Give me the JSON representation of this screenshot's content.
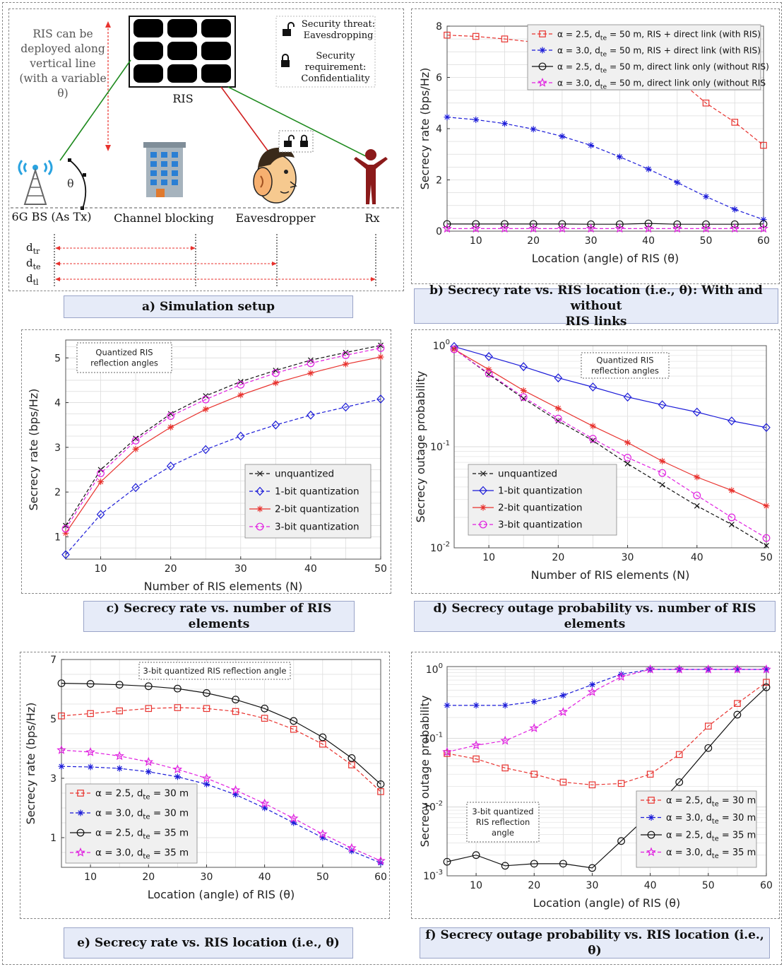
{
  "setup": {
    "ris_note": [
      "RIS can be",
      "deployed along",
      "vertical line",
      "(with a variable",
      "θ)"
    ],
    "ris_label": "RIS",
    "threat_label": [
      "Security threat:",
      "Eavesdropping"
    ],
    "requirement_label": [
      "Security",
      "requirement:",
      "Confidentiality"
    ],
    "bs_label": "6G BS (As Tx)",
    "blocking_label": "Channel blocking",
    "eve_label": "Eavesdropper",
    "rx_label": "Rx",
    "theta": "θ",
    "d_labels": [
      {
        "base": "d",
        "sub": "tr"
      },
      {
        "base": "d",
        "sub": "te"
      },
      {
        "base": "d",
        "sub": "tl"
      }
    ]
  },
  "captions": {
    "a": "a) Simulation setup",
    "b": [
      "b) Secrecy rate vs. RIS location (i.e., θ): With and without",
      "RIS links"
    ],
    "c": "c) Secrecy rate vs. number of RIS elements",
    "d": "d) Secrecy outage probability vs. number of RIS elements",
    "e": "e) Secrecy rate vs. RIS location (i.e., θ)",
    "f": "f) Secrecy outage probability vs. RIS location (i.e., θ)"
  },
  "colors": {
    "red": "#e8322e",
    "blue": "#1b1bd8",
    "black": "#111111",
    "magenta": "#e020e0",
    "green": "#1e8a1e",
    "caption_bg": "#e6ebf8"
  },
  "chart_data": [
    {
      "id": "b",
      "type": "line",
      "xlabel": "Location (angle) of RIS (θ)",
      "ylabel": "Secrecy rate (bps/Hz)",
      "xlim": [
        5,
        60
      ],
      "ylim": [
        0,
        8
      ],
      "scale": "linear",
      "xticks": [
        10,
        20,
        30,
        40,
        50,
        60
      ],
      "yticks": [
        0,
        2,
        4,
        6,
        8
      ],
      "xgrid": [
        5,
        10,
        15,
        20,
        25,
        30,
        35,
        40,
        45,
        50,
        55,
        60
      ],
      "ygrid": [
        0,
        0.5,
        1,
        1.5,
        2,
        2.5,
        3,
        3.5,
        4,
        4.5,
        5,
        5.5,
        6,
        6.5,
        7,
        7.5,
        8
      ],
      "legend": "top-right",
      "x": [
        5,
        10,
        15,
        20,
        25,
        30,
        35,
        40,
        45,
        50,
        55,
        60
      ],
      "series": [
        {
          "name": "α = 2.5, dte = 50 m, RIS + direct link (with RIS)",
          "legend": {
            "pre": "α = 2.5, d",
            "sub": "te",
            "post": " = 50 m, RIS + direct link (with RIS)"
          },
          "color": "red",
          "dash": true,
          "marker": "square",
          "values": [
            7.65,
            7.6,
            7.5,
            7.38,
            7.25,
            7.05,
            6.8,
            6.45,
            5.95,
            5.0,
            4.25,
            3.35
          ]
        },
        {
          "name": "α = 3.0, dte = 50 m, RIS + direct link (with RIS)",
          "legend": {
            "pre": "α = 3.0, d",
            "sub": "te",
            "post": " = 50 m, RIS + direct link (with RIS)"
          },
          "color": "blue",
          "dash": true,
          "marker": "asterisk",
          "values": [
            4.45,
            4.35,
            4.2,
            3.98,
            3.7,
            3.35,
            2.9,
            2.42,
            1.9,
            1.35,
            0.85,
            0.45
          ]
        },
        {
          "name": "α = 2.5, dte = 50 m, direct link only (without RIS)",
          "legend": {
            "pre": "α = 2.5, d",
            "sub": "te",
            "post": " = 50 m, direct link only (without RIS)"
          },
          "color": "black",
          "dash": false,
          "marker": "circle",
          "values": [
            0.28,
            0.28,
            0.28,
            0.28,
            0.28,
            0.27,
            0.27,
            0.3,
            0.27,
            0.27,
            0.27,
            0.28
          ]
        },
        {
          "name": "α = 3.0, dte = 50 m, direct link only (without RIS",
          "legend": {
            "pre": "α = 3.0, d",
            "sub": "te",
            "post": " = 50 m, direct link only (without RIS"
          },
          "color": "magenta",
          "dash": true,
          "marker": "star",
          "values": [
            0.1,
            0.1,
            0.1,
            0.1,
            0.1,
            0.1,
            0.1,
            0.1,
            0.1,
            0.1,
            0.1,
            0.1
          ]
        }
      ]
    },
    {
      "id": "c",
      "type": "line",
      "xlabel": "Number of RIS elements (N)",
      "ylabel": "Secrecy rate (bps/Hz)",
      "xlim": [
        5,
        50
      ],
      "ylim": [
        0.5,
        5.4
      ],
      "scale": "linear",
      "xticks": [
        10,
        20,
        30,
        40,
        50
      ],
      "yticks": [
        1,
        2,
        3,
        4,
        5
      ],
      "xgrid": [
        5,
        10,
        15,
        20,
        25,
        30,
        35,
        40,
        45,
        50
      ],
      "ygrid": [
        0.5,
        0.75,
        1,
        1.25,
        1.5,
        1.75,
        2,
        2.25,
        2.5,
        2.75,
        3,
        3.25,
        3.5,
        3.75,
        4,
        4.25,
        4.5,
        4.75,
        5,
        5.25
      ],
      "legend": "bottom-right",
      "annotation": [
        "Quantized RIS",
        "reflection angles"
      ],
      "x": [
        5,
        10,
        15,
        20,
        25,
        30,
        35,
        40,
        45,
        50
      ],
      "series": [
        {
          "name": "unquantized",
          "legend": {
            "pre": "unquantized",
            "sub": "",
            "post": ""
          },
          "color": "black",
          "dash": true,
          "marker": "x",
          "values": [
            1.25,
            2.5,
            3.2,
            3.75,
            4.15,
            4.47,
            4.72,
            4.95,
            5.12,
            5.28
          ]
        },
        {
          "name": "1-bit quantization",
          "legend": {
            "pre": "1-bit quantization",
            "sub": "",
            "post": ""
          },
          "color": "blue",
          "dash": true,
          "marker": "diamond",
          "values": [
            0.6,
            1.5,
            2.1,
            2.58,
            2.95,
            3.25,
            3.5,
            3.72,
            3.9,
            4.08
          ]
        },
        {
          "name": "2-bit quantization",
          "legend": {
            "pre": "2-bit quantization",
            "sub": "",
            "post": ""
          },
          "color": "red",
          "dash": false,
          "marker": "asterisk",
          "values": [
            1.08,
            2.23,
            2.96,
            3.45,
            3.85,
            4.17,
            4.44,
            4.66,
            4.86,
            5.02
          ]
        },
        {
          "name": "3-bit quantization",
          "legend": {
            "pre": "3-bit quantization",
            "sub": "",
            "post": ""
          },
          "color": "magenta",
          "dash": true,
          "marker": "circle",
          "values": [
            1.18,
            2.42,
            3.15,
            3.7,
            4.07,
            4.4,
            4.66,
            4.88,
            5.06,
            5.22
          ]
        }
      ]
    },
    {
      "id": "d",
      "type": "line",
      "xlabel": "Number of RIS elements (N)",
      "ylabel": "Secrecy outage probability",
      "xlim": [
        5,
        50
      ],
      "ylim": [
        0.01,
        1
      ],
      "scale": "log",
      "xticks": [
        10,
        20,
        30,
        40,
        50
      ],
      "yticks": [
        {
          "base": "10",
          "exp": "0",
          "v": 1
        },
        {
          "base": "10",
          "exp": "-1",
          "v": 0.1
        },
        {
          "base": "10",
          "exp": "-2",
          "v": 0.01
        }
      ],
      "xgrid": [
        5,
        10,
        15,
        20,
        25,
        30,
        35,
        40,
        45,
        50
      ],
      "legend": "bottom-left",
      "annotation": [
        "Quantized RIS",
        "reflection angles"
      ],
      "x": [
        5,
        10,
        15,
        20,
        25,
        30,
        35,
        40,
        45,
        50
      ],
      "series": [
        {
          "name": "unquantized",
          "legend": {
            "pre": "unquantized",
            "sub": "",
            "post": ""
          },
          "color": "black",
          "dash": true,
          "marker": "x",
          "values": [
            0.93,
            0.52,
            0.3,
            0.18,
            0.115,
            0.068,
            0.042,
            0.026,
            0.017,
            0.0105
          ]
        },
        {
          "name": "1-bit quantization",
          "legend": {
            "pre": "1-bit quantization",
            "sub": "",
            "post": ""
          },
          "color": "blue",
          "dash": false,
          "marker": "diamond",
          "values": [
            0.98,
            0.78,
            0.62,
            0.48,
            0.39,
            0.31,
            0.26,
            0.22,
            0.18,
            0.155
          ]
        },
        {
          "name": "2-bit quantization",
          "legend": {
            "pre": "2-bit quantization",
            "sub": "",
            "post": ""
          },
          "color": "red",
          "dash": false,
          "marker": "asterisk",
          "values": [
            0.92,
            0.58,
            0.36,
            0.24,
            0.16,
            0.11,
            0.072,
            0.05,
            0.037,
            0.026
          ]
        },
        {
          "name": "3-bit quantization",
          "legend": {
            "pre": "3-bit quantization",
            "sub": "",
            "post": ""
          },
          "color": "magenta",
          "dash": true,
          "marker": "circle",
          "values": [
            0.92,
            0.53,
            0.31,
            0.19,
            0.12,
            0.078,
            0.055,
            0.033,
            0.02,
            0.0125
          ]
        }
      ]
    },
    {
      "id": "e",
      "type": "line",
      "xlabel": "Location (angle) of RIS (θ)",
      "ylabel": "Secrecy rate (bps/Hz)",
      "xlim": [
        5,
        60
      ],
      "ylim": [
        0,
        7
      ],
      "scale": "linear",
      "xticks": [
        10,
        20,
        30,
        40,
        50,
        60
      ],
      "yticks": [
        1,
        3,
        5,
        7
      ],
      "xgrid": [
        5,
        10,
        15,
        20,
        25,
        30,
        35,
        40,
        45,
        50,
        55,
        60
      ],
      "ygrid": [
        0,
        0.5,
        1,
        1.5,
        2,
        2.5,
        3,
        3.5,
        4,
        4.5,
        5,
        5.5,
        6,
        6.5,
        7
      ],
      "legend": "bottom-left",
      "annotation": [
        "3-bit quantized RIS reflection angle"
      ],
      "x": [
        5,
        10,
        15,
        20,
        25,
        30,
        35,
        40,
        45,
        50,
        55,
        60
      ],
      "series": [
        {
          "name": "α = 2.5, dte = 30 m",
          "legend": {
            "pre": "α = 2.5, d",
            "sub": "te",
            "post": " = 30 m"
          },
          "color": "red",
          "dash": true,
          "marker": "square",
          "values": [
            5.1,
            5.18,
            5.27,
            5.35,
            5.38,
            5.35,
            5.25,
            5.02,
            4.65,
            4.15,
            3.45,
            2.55
          ]
        },
        {
          "name": "α = 3.0, dte = 30 m",
          "legend": {
            "pre": "α = 3.0, d",
            "sub": "te",
            "post": " = 30 m"
          },
          "color": "blue",
          "dash": true,
          "marker": "asterisk",
          "values": [
            3.4,
            3.38,
            3.33,
            3.22,
            3.05,
            2.8,
            2.45,
            2.0,
            1.5,
            1.0,
            0.55,
            0.15
          ]
        },
        {
          "name": "α = 2.5, dte = 35 m",
          "legend": {
            "pre": "α = 2.5, d",
            "sub": "te",
            "post": " = 35 m"
          },
          "color": "black",
          "dash": false,
          "marker": "circle",
          "values": [
            6.2,
            6.18,
            6.15,
            6.1,
            6.02,
            5.87,
            5.65,
            5.35,
            4.93,
            4.38,
            3.68,
            2.8
          ]
        },
        {
          "name": "α = 3.0, dte = 35 m",
          "legend": {
            "pre": "α = 3.0, d",
            "sub": "te",
            "post": " = 35 m"
          },
          "color": "magenta",
          "dash": true,
          "marker": "star",
          "values": [
            3.95,
            3.88,
            3.75,
            3.55,
            3.3,
            3.0,
            2.6,
            2.15,
            1.65,
            1.12,
            0.65,
            0.22
          ]
        }
      ]
    },
    {
      "id": "f",
      "type": "line",
      "xlabel": "Location (angle) of RIS (θ)",
      "ylabel": "Secrecy outage probability",
      "xlim": [
        5,
        60
      ],
      "ylim": [
        0.001,
        1.1
      ],
      "scale": "log",
      "xticks": [
        10,
        20,
        30,
        40,
        50,
        60
      ],
      "yticks": [
        {
          "base": "10",
          "exp": "0",
          "v": 1
        },
        {
          "base": "10",
          "exp": "-1",
          "v": 0.1
        },
        {
          "base": "10",
          "exp": "-2",
          "v": 0.01
        },
        {
          "base": "10",
          "exp": "-3",
          "v": 0.001
        }
      ],
      "xgrid": [
        5,
        10,
        15,
        20,
        25,
        30,
        35,
        40,
        45,
        50,
        55,
        60
      ],
      "legend": "bottom-right",
      "annotation": [
        "3-bit quantized",
        "RIS reflection",
        "angle"
      ],
      "x": [
        5,
        10,
        15,
        20,
        25,
        30,
        35,
        40,
        45,
        50,
        55,
        60
      ],
      "series": [
        {
          "name": "α = 2.5, dte = 30 m",
          "legend": {
            "pre": "α = 2.5, d",
            "sub": "te",
            "post": " = 30 m"
          },
          "color": "red",
          "dash": true,
          "marker": "square",
          "values": [
            0.06,
            0.05,
            0.037,
            0.03,
            0.023,
            0.021,
            0.022,
            0.03,
            0.058,
            0.15,
            0.32,
            0.65
          ]
        },
        {
          "name": "α = 3.0, dte = 30 m",
          "legend": {
            "pre": "α = 3.0, d",
            "sub": "te",
            "post": " = 30 m"
          },
          "color": "blue",
          "dash": true,
          "marker": "asterisk",
          "values": [
            0.3,
            0.3,
            0.3,
            0.34,
            0.42,
            0.6,
            0.85,
            1.0,
            1.0,
            1.0,
            1.0,
            1.0
          ]
        },
        {
          "name": "α = 2.5, dte = 35 m",
          "legend": {
            "pre": "α = 2.5, d",
            "sub": "te",
            "post": " = 35 m"
          },
          "color": "black",
          "dash": false,
          "marker": "circle",
          "values": [
            0.0016,
            0.002,
            0.0014,
            0.0015,
            0.0015,
            0.0013,
            0.0032,
            0.008,
            0.023,
            0.072,
            0.22,
            0.55
          ]
        },
        {
          "name": "α = 3.0, dte = 35 m",
          "legend": {
            "pre": "α = 3.0, d",
            "sub": "te",
            "post": " = 35 m"
          },
          "color": "magenta",
          "dash": true,
          "marker": "star",
          "values": [
            0.063,
            0.079,
            0.092,
            0.14,
            0.24,
            0.47,
            0.78,
            1.0,
            1.0,
            1.0,
            1.0,
            1.0
          ]
        }
      ]
    }
  ]
}
